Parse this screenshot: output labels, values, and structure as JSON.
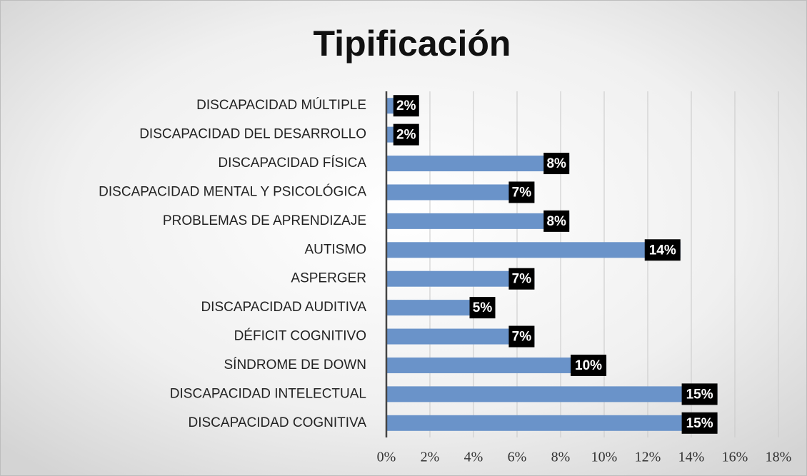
{
  "chart_data": {
    "type": "bar",
    "orientation": "horizontal",
    "title": "Tipificación",
    "categories": [
      "DISCAPACIDAD MÚLTIPLE",
      "DISCAPACIDAD DEL DESARROLLO",
      "DISCAPACIDAD FÍSICA",
      "DISCAPACIDAD MENTAL Y PSICOLÓGICA",
      "PROBLEMAS DE APRENDIZAJE",
      "AUTISMO",
      "ASPERGER",
      "DISCAPACIDAD AUDITIVA",
      "DÉFICIT COGNITIVO",
      "SÍNDROME DE DOWN",
      "DISCAPACIDAD INTELECTUAL",
      "DISCAPACIDAD COGNITIVA"
    ],
    "values": [
      1.5,
      1.5,
      8.4,
      6.8,
      8.4,
      13.5,
      6.8,
      5.0,
      6.8,
      10.1,
      15.2,
      15.2
    ],
    "value_labels": [
      "2%",
      "2%",
      "8%",
      "7%",
      "8%",
      "14%",
      "7%",
      "5%",
      "7%",
      "10%",
      "15%",
      "15%"
    ],
    "color": "#6a93c9",
    "xlim": [
      0,
      18
    ],
    "xticks": [
      {
        "value": 0,
        "label": "0%"
      },
      {
        "value": 2,
        "label": "2%"
      },
      {
        "value": 4,
        "label": "4%"
      },
      {
        "value": 6,
        "label": "6%"
      },
      {
        "value": 8,
        "label": "8%"
      },
      {
        "value": 10,
        "label": "10%"
      },
      {
        "value": 12,
        "label": "12%"
      },
      {
        "value": 14,
        "label": "14%"
      },
      {
        "value": 16,
        "label": "16%"
      },
      {
        "value": 18,
        "label": "18%"
      }
    ],
    "grid": true
  }
}
